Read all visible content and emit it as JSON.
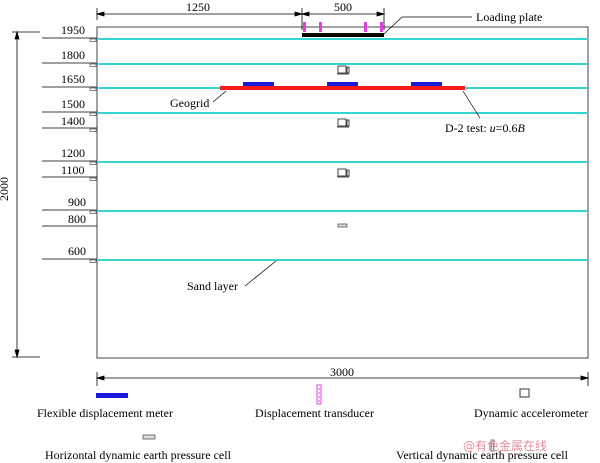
{
  "diagram": {
    "dims": {
      "width_top": "1250",
      "plate_width": "500",
      "height_total": "2000",
      "width_total": "3000"
    },
    "elevations": [
      "1950",
      "1800",
      "1650",
      "1500",
      "1400",
      "1200",
      "1100",
      "900",
      "800",
      "600"
    ],
    "callouts": {
      "loading_plate": "Loading plate",
      "geogrid": "Geogrid",
      "test_label": "D-2 test: ",
      "test_var": "u",
      "test_eq": "=0.6",
      "test_var2": "B",
      "sand_layer": "Sand layer"
    },
    "colors": {
      "sand_layer_line": "#38d4d4",
      "geogrid": "#ff1a1a",
      "flexible_meter": "#1a1adb",
      "displacement_transducer": "#e040e0"
    }
  },
  "legend": {
    "flexible_displacement_meter": "Flexible displacement meter",
    "displacement_transducer": "Displacement transducer",
    "dynamic_accelerometer": "Dynamic accelerometer",
    "horizontal_pressure_cell": "Horizontal dynamic earth pressure cell",
    "vertical_pressure_cell": "Vertical dynamic earth pressure cell"
  },
  "watermark": "@有色金属在线"
}
